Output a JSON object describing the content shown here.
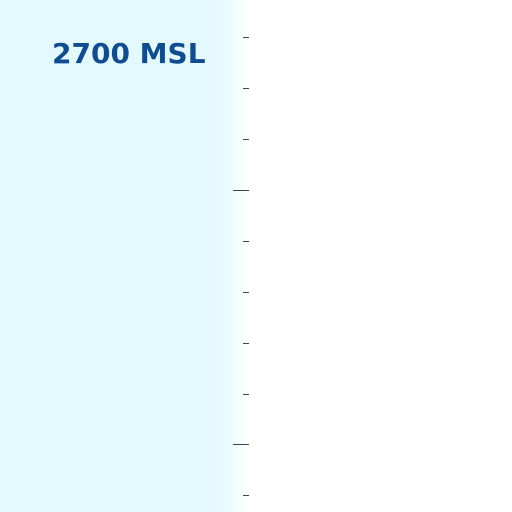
{
  "altimeter": {
    "readout": "2700 MSL"
  },
  "colors": {
    "panel_background": "#e4f9fd",
    "readout_text": "#0f4c92",
    "tick": "#3a4654"
  }
}
